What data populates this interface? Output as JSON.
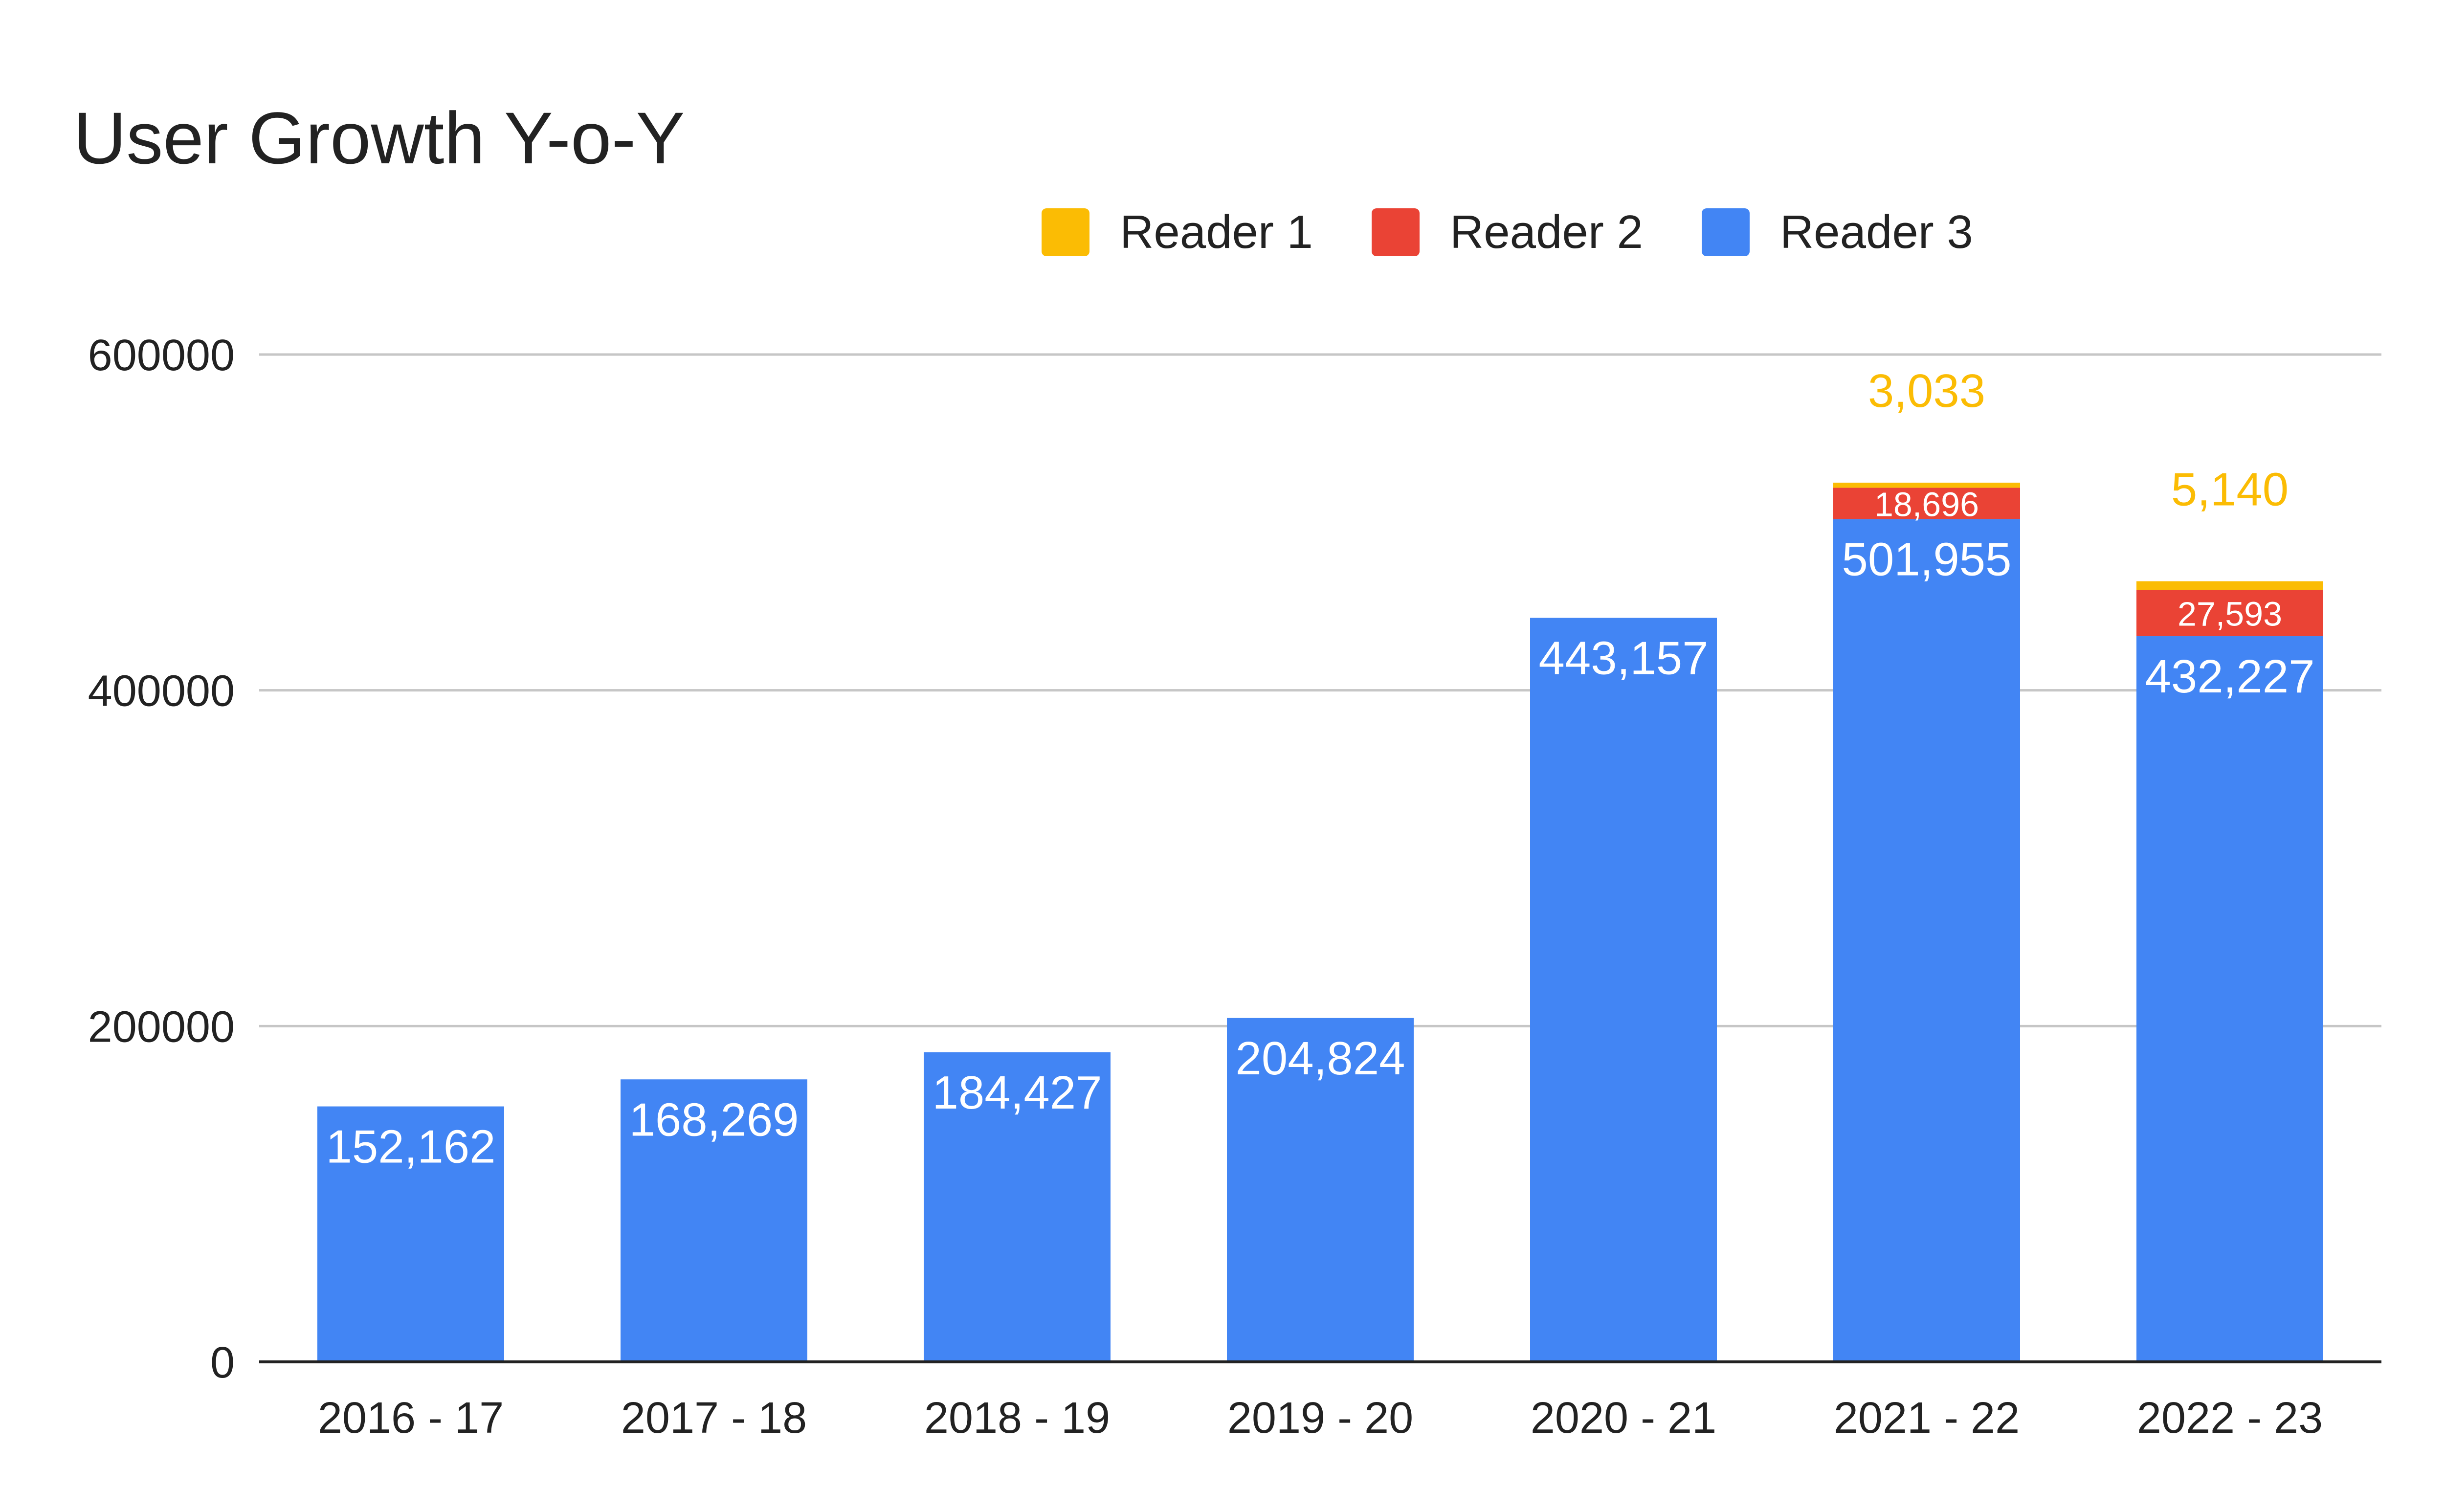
{
  "chart_data": {
    "type": "bar",
    "stacked": true,
    "title": "User Growth Y-o-Y",
    "xlabel": "",
    "ylabel": "",
    "categories": [
      "2016 - 17",
      "2017 - 18",
      "2018 - 19",
      "2019 - 20",
      "2020 - 21",
      "2021 - 22",
      "2022 - 23"
    ],
    "y_ticks": [
      "0",
      "200000",
      "400000",
      "600000"
    ],
    "ylim": [
      0,
      600000
    ],
    "grid": true,
    "legend_position": "top-right",
    "series": [
      {
        "name": "Reader 3",
        "color": "#4285F4",
        "values": [
          152162,
          168269,
          184427,
          204824,
          443157,
          501955,
          432227
        ],
        "labels": [
          "152,162",
          "168,269",
          "184,427",
          "204,824",
          "443,157",
          "501,955",
          "432,227"
        ]
      },
      {
        "name": "Reader 2",
        "color": "#EA4335",
        "values": [
          0,
          0,
          0,
          0,
          0,
          18696,
          27593
        ],
        "labels": [
          "",
          "",
          "",
          "",
          "",
          "18,696",
          "27,593"
        ]
      },
      {
        "name": "Reader 1",
        "color": "#FBBC04",
        "values": [
          0,
          0,
          0,
          0,
          0,
          3033,
          5140
        ],
        "labels": [
          "",
          "",
          "",
          "",
          "",
          "3,033",
          "5,140"
        ]
      }
    ],
    "legend_order": [
      "Reader 1",
      "Reader 2",
      "Reader 3"
    ]
  }
}
